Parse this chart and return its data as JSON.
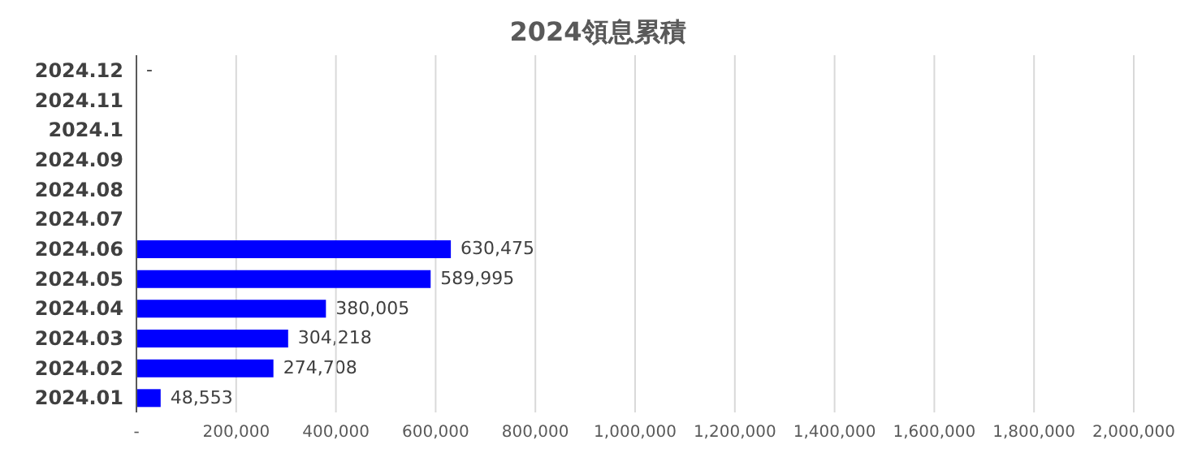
{
  "chart_data": {
    "type": "bar",
    "orientation": "horizontal",
    "title": "2024領息累積",
    "categories": [
      "2024.12",
      "2024.11",
      "2024.1",
      "2024.09",
      "2024.08",
      "2024.07",
      "2024.06",
      "2024.05",
      "2024.04",
      "2024.03",
      "2024.02",
      "2024.01"
    ],
    "values": [
      0,
      null,
      null,
      null,
      null,
      null,
      630475,
      589995,
      380005,
      304218,
      274708,
      48553
    ],
    "value_labels": [
      "-",
      null,
      null,
      null,
      null,
      null,
      "630,475",
      "589,995",
      "380,005",
      "304,218",
      "274,708",
      "48,553"
    ],
    "color": "#0000ff",
    "xlim": [
      0,
      2000000
    ],
    "xticks": [
      {
        "value": 0,
        "label": "-"
      },
      {
        "value": 200000,
        "label": "200,000"
      },
      {
        "value": 400000,
        "label": "400,000"
      },
      {
        "value": 600000,
        "label": "600,000"
      },
      {
        "value": 800000,
        "label": "800,000"
      },
      {
        "value": 1000000,
        "label": "1,000,000"
      },
      {
        "value": 1200000,
        "label": "1,200,000"
      },
      {
        "value": 1400000,
        "label": "1,400,000"
      },
      {
        "value": 1600000,
        "label": "1,600,000"
      },
      {
        "value": 1800000,
        "label": "1,800,000"
      },
      {
        "value": 2000000,
        "label": "2,000,000"
      }
    ],
    "grid": "x"
  }
}
